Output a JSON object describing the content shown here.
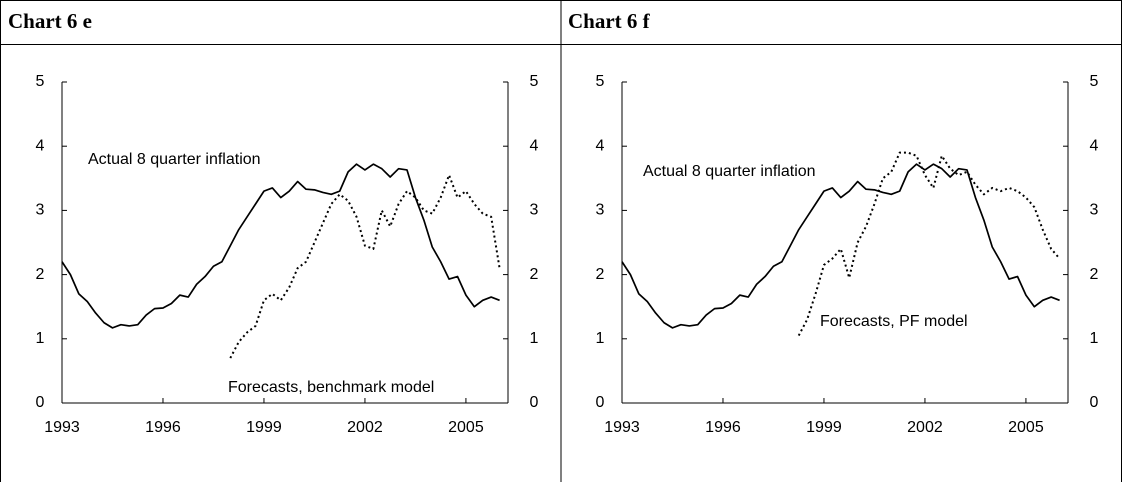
{
  "chart_data": [
    {
      "type": "line",
      "title": "Chart 6 e",
      "categories": [
        "1993",
        null,
        null,
        null,
        null,
        null,
        null,
        null,
        null,
        null,
        null,
        null,
        "1996",
        null,
        null,
        null,
        null,
        null,
        null,
        null,
        null,
        null,
        null,
        null,
        "1999",
        null,
        null,
        null,
        null,
        null,
        null,
        null,
        null,
        null,
        null,
        null,
        "2002",
        null,
        null,
        null,
        null,
        null,
        null,
        null,
        null,
        null,
        null,
        null,
        "2005",
        null,
        null,
        null,
        null
      ],
      "ylim": [
        0,
        5
      ],
      "yticks": [
        0,
        1,
        2,
        3,
        4,
        5
      ],
      "y2lim": [
        0,
        5
      ],
      "y2ticks": [
        0,
        1,
        2,
        3,
        4,
        5
      ],
      "series": [
        {
          "name": "Actual 8 quarter inflation",
          "color": "#000000",
          "style": "solid",
          "values": [
            2.2,
            2.0,
            1.7,
            1.58,
            1.4,
            1.25,
            1.17,
            1.22,
            1.2,
            1.22,
            1.37,
            1.47,
            1.48,
            1.55,
            1.68,
            1.65,
            1.85,
            1.97,
            2.13,
            2.2,
            2.45,
            2.7,
            2.9,
            3.1,
            3.3,
            3.35,
            3.2,
            3.3,
            3.45,
            3.33,
            3.32,
            3.28,
            3.25,
            3.3,
            3.6,
            3.72,
            3.63,
            3.72,
            3.65,
            3.52,
            3.65,
            3.63,
            3.2,
            2.85,
            2.43,
            2.2,
            1.93,
            1.97,
            1.68,
            1.5,
            1.6,
            1.65,
            1.6
          ]
        },
        {
          "name": "Forecasts, benchmark model",
          "color": "#000000",
          "style": "dotted",
          "values": [
            null,
            null,
            null,
            null,
            null,
            null,
            null,
            null,
            null,
            null,
            null,
            null,
            null,
            null,
            null,
            null,
            null,
            null,
            null,
            null,
            0.7,
            0.95,
            1.1,
            1.2,
            1.6,
            1.7,
            1.6,
            1.8,
            2.1,
            2.2,
            2.5,
            2.8,
            3.1,
            3.25,
            3.15,
            2.9,
            2.45,
            2.4,
            3.0,
            2.75,
            3.1,
            3.3,
            3.2,
            3.0,
            2.95,
            3.2,
            3.55,
            3.2,
            3.3,
            3.1,
            2.95,
            2.9,
            2.1
          ]
        }
      ]
    },
    {
      "type": "line",
      "title": "Chart 6 f",
      "categories": [
        "1993",
        null,
        null,
        null,
        null,
        null,
        null,
        null,
        null,
        null,
        null,
        null,
        "1996",
        null,
        null,
        null,
        null,
        null,
        null,
        null,
        null,
        null,
        null,
        null,
        "1999",
        null,
        null,
        null,
        null,
        null,
        null,
        null,
        null,
        null,
        null,
        null,
        "2002",
        null,
        null,
        null,
        null,
        null,
        null,
        null,
        null,
        null,
        null,
        null,
        "2005",
        null,
        null,
        null,
        null
      ],
      "ylim": [
        0,
        5
      ],
      "yticks": [
        0,
        1,
        2,
        3,
        4,
        5
      ],
      "y2lim": [
        0,
        5
      ],
      "y2ticks": [
        0,
        1,
        2,
        3,
        4,
        5
      ],
      "series": [
        {
          "name": "Actual 8 quarter inflation",
          "color": "#000000",
          "style": "solid",
          "values": [
            2.2,
            2.0,
            1.7,
            1.58,
            1.4,
            1.25,
            1.17,
            1.22,
            1.2,
            1.22,
            1.37,
            1.47,
            1.48,
            1.55,
            1.68,
            1.65,
            1.85,
            1.97,
            2.13,
            2.2,
            2.45,
            2.7,
            2.9,
            3.1,
            3.3,
            3.35,
            3.2,
            3.3,
            3.45,
            3.33,
            3.32,
            3.28,
            3.25,
            3.3,
            3.6,
            3.72,
            3.63,
            3.72,
            3.65,
            3.52,
            3.65,
            3.63,
            3.2,
            2.85,
            2.43,
            2.2,
            1.93,
            1.97,
            1.68,
            1.5,
            1.6,
            1.65,
            1.6
          ]
        },
        {
          "name": "Forecasts, PF model",
          "color": "#000000",
          "style": "dotted",
          "values": [
            null,
            null,
            null,
            null,
            null,
            null,
            null,
            null,
            null,
            null,
            null,
            null,
            null,
            null,
            null,
            null,
            null,
            null,
            null,
            null,
            null,
            1.05,
            1.3,
            1.7,
            2.15,
            2.25,
            2.4,
            1.95,
            2.5,
            2.75,
            3.1,
            3.5,
            3.6,
            3.9,
            3.9,
            3.85,
            3.55,
            3.35,
            3.85,
            3.65,
            3.55,
            3.6,
            3.4,
            3.25,
            3.35,
            3.3,
            3.35,
            3.3,
            3.2,
            3.05,
            2.7,
            2.4,
            2.25
          ]
        }
      ]
    }
  ]
}
